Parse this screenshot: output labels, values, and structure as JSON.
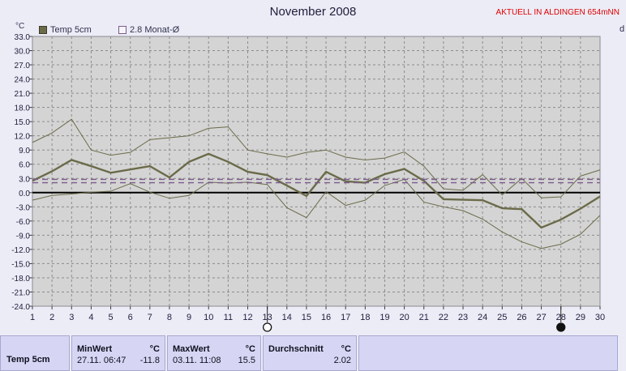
{
  "header": {
    "title": "November 2008",
    "station": "AKTUELL IN ALDINGEN 654mNN",
    "unit_left": "°C",
    "unit_right": "d"
  },
  "legend": [
    {
      "label": "Temp 5cm"
    },
    {
      "label": "2.8 Monat-Ø"
    }
  ],
  "chart_data": {
    "type": "line",
    "title": "November 2008",
    "ylabel": "°C",
    "ylim": [
      -24,
      33
    ],
    "yticks": [
      "33.0",
      "30.0",
      "27.0",
      "24.0",
      "21.0",
      "18.0",
      "15.0",
      "12.0",
      "9.0",
      "6.0",
      "3.0",
      "0.0",
      "-3.0",
      "-6.0",
      "-9.0",
      "-12.0",
      "-15.0",
      "-18.0",
      "-21.0",
      "-24.0"
    ],
    "x": [
      1,
      2,
      3,
      4,
      5,
      6,
      7,
      8,
      9,
      10,
      11,
      12,
      13,
      14,
      15,
      16,
      17,
      18,
      19,
      20,
      21,
      22,
      23,
      24,
      25,
      26,
      27,
      28,
      29,
      30
    ],
    "grid": true,
    "series": [
      {
        "name": "Temp 5cm",
        "color": "#6b6b4a",
        "values": [
          2.5,
          4.5,
          6.9,
          5.6,
          4.2,
          4.9,
          5.6,
          3.2,
          6.5,
          8.2,
          6.5,
          4.4,
          3.7,
          1.5,
          -0.7,
          4.4,
          2.4,
          2.1,
          3.9,
          5.0,
          2.5,
          -1.4,
          -1.5,
          -1.6,
          -3.3,
          -3.5,
          -7.4,
          -5.7,
          -3.4,
          -0.8
        ]
      },
      {
        "color": "#6b6b4a",
        "values": [
          10.6,
          12.6,
          15.5,
          9.0,
          7.9,
          8.5,
          11.2,
          11.6,
          12.0,
          13.6,
          13.9,
          9.0,
          8.2,
          7.5,
          8.5,
          9.0,
          7.5,
          6.9,
          7.3,
          8.6,
          5.6,
          0.8,
          0.5,
          3.8,
          -0.5,
          3.0,
          -1.1,
          -0.9,
          3.5,
          4.8
        ]
      },
      {
        "color": "#6b6b4a",
        "values": [
          -1.6,
          -0.6,
          -0.3,
          0.1,
          0.3,
          1.9,
          0.1,
          -1.2,
          -0.6,
          2.2,
          2.0,
          2.2,
          1.7,
          -3.2,
          -5.3,
          0.2,
          -2.7,
          -1.6,
          1.5,
          2.8,
          -2.0,
          -3.0,
          -3.8,
          -5.6,
          -8.3,
          -10.4,
          -11.8,
          -10.9,
          -8.8,
          -4.8
        ]
      },
      {
        "name": "2.8 Monat-Ø",
        "color": "#7a5a8a",
        "dashed": true,
        "values": [
          2.8,
          2.8,
          2.8,
          2.8,
          2.8,
          2.8,
          2.8,
          2.8,
          2.8,
          2.8,
          2.8,
          2.8,
          2.8,
          2.8,
          2.8,
          2.8,
          2.8,
          2.8,
          2.8,
          2.8,
          2.8,
          2.8,
          2.8,
          2.8,
          2.8,
          2.8,
          2.8,
          2.8,
          2.8,
          2.8
        ]
      },
      {
        "color": "#7a5a8a",
        "dashed": true,
        "values": [
          2.1,
          2.1,
          2.1,
          2.1,
          2.1,
          2.1,
          2.1,
          2.1,
          2.1,
          2.1,
          2.1,
          2.1,
          2.1,
          2.1,
          2.1,
          2.1,
          2.1,
          2.1,
          2.1,
          2.1,
          2.1,
          2.1,
          2.1,
          2.1,
          2.1,
          2.1,
          2.1,
          2.1,
          2.1,
          2.1
        ]
      }
    ],
    "zero_line": 0,
    "markers": [
      {
        "day": 13,
        "symbol": "open-circle"
      },
      {
        "day": 28,
        "symbol": "filled-circle"
      }
    ]
  },
  "stats": {
    "row_label": "Temp 5cm",
    "min": {
      "label": "MinWert",
      "unit": "°C",
      "time": "27.11. 06:47",
      "value": "-11.8"
    },
    "max": {
      "label": "MaxWert",
      "unit": "°C",
      "time": "03.11. 11:08",
      "value": "15.5"
    },
    "avg": {
      "label": "Durchschnitt",
      "unit": "°C",
      "value": "2.02"
    }
  },
  "colors": {
    "plot_bg": "#d4d4d4",
    "page_bg": "#ececf6",
    "panel_bg": "#d6d6f4",
    "accent": "#e00000"
  }
}
